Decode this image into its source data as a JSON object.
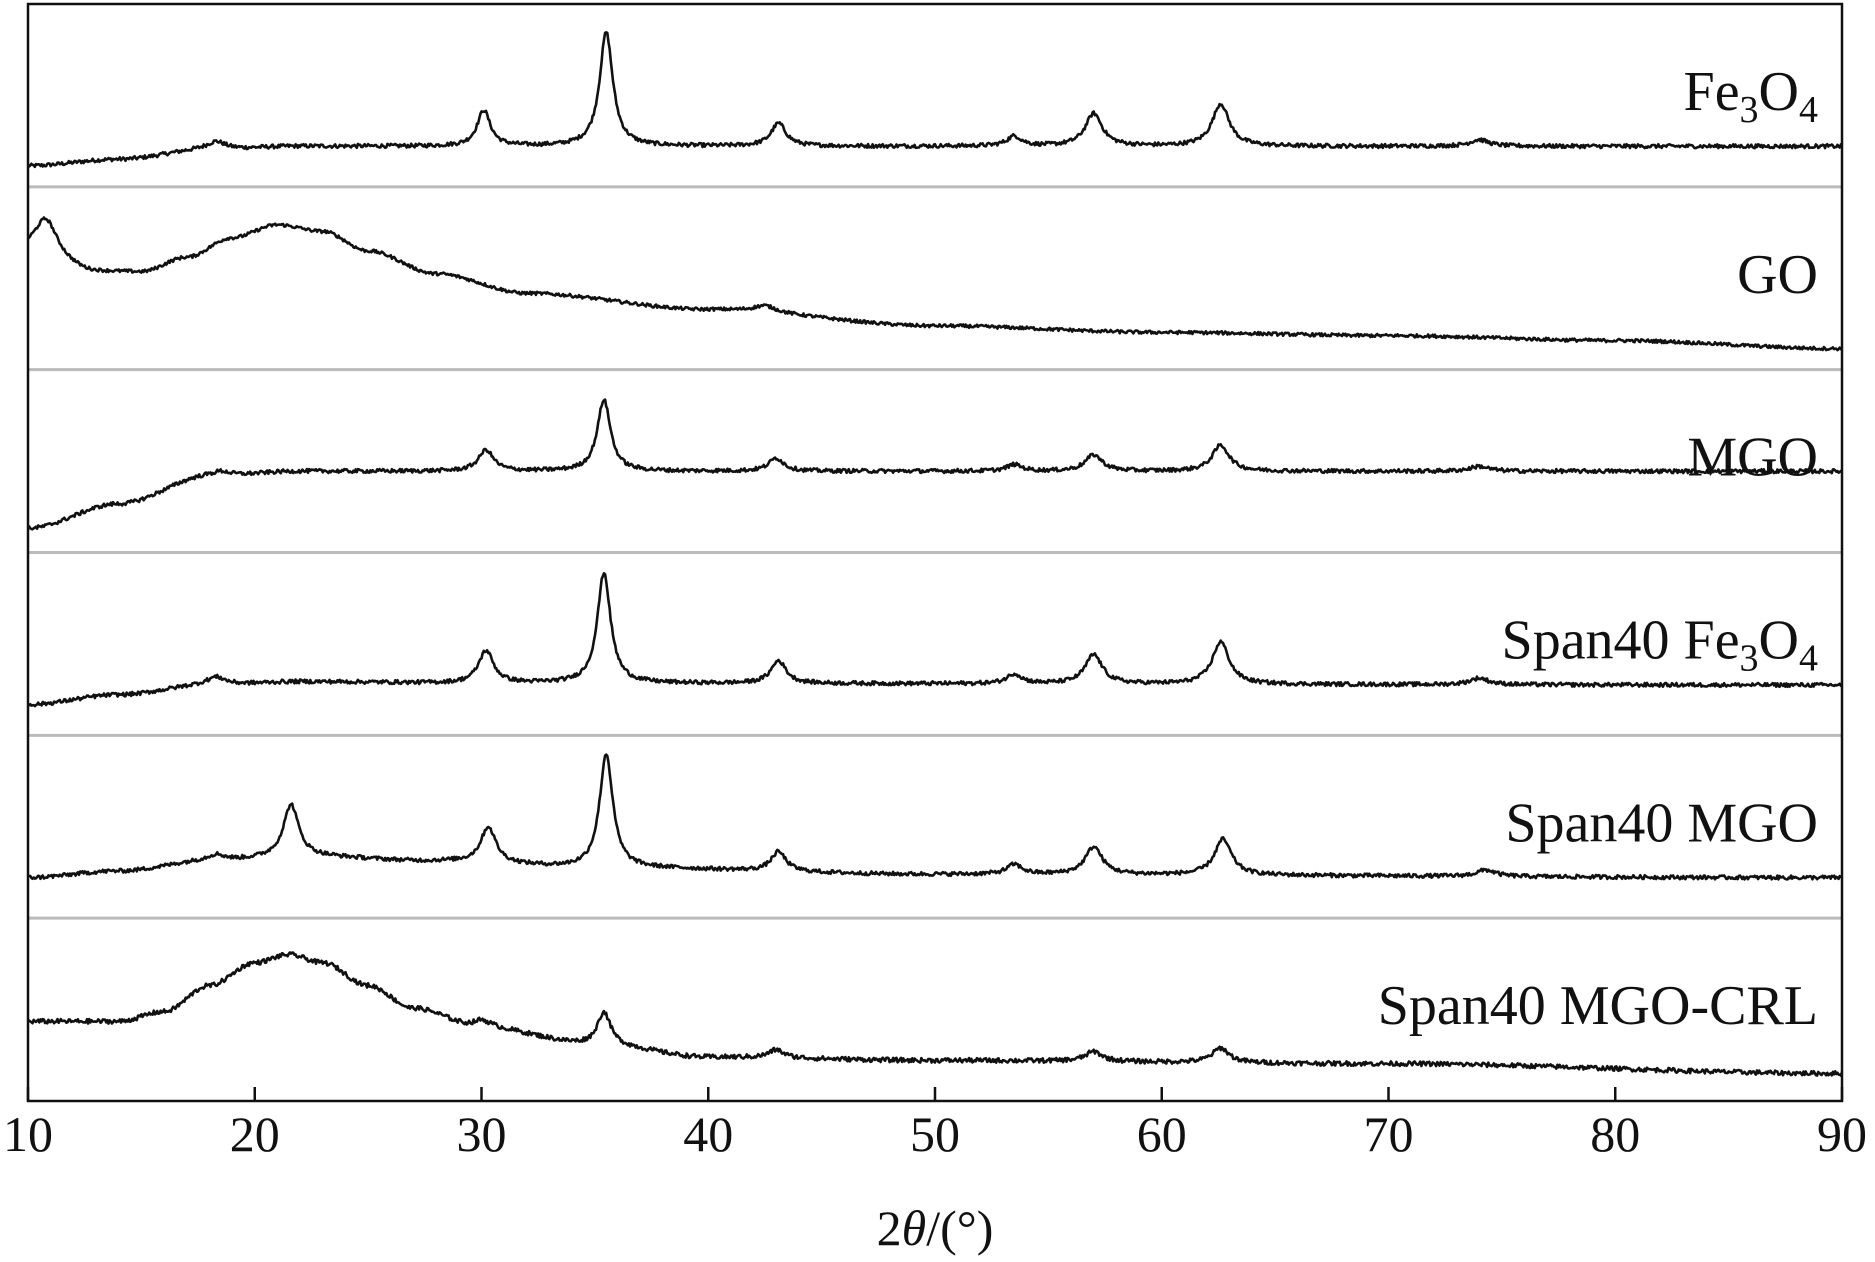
{
  "chart_data": {
    "type": "line",
    "title": "",
    "xlabel_parts": {
      "prefix": "2",
      "symbol": "θ",
      "suffix": "/(°)"
    },
    "ylabel": "",
    "xlim": [
      10,
      90
    ],
    "x_ticks": [
      10,
      20,
      30,
      40,
      50,
      60,
      70,
      80,
      90
    ],
    "y_ticks_shown": false,
    "grid": false,
    "legend": "inline labels at right of each trace",
    "separators": true,
    "colors": {
      "trace": "#111111",
      "separator": "#bbbbbb",
      "frame": "#111111"
    },
    "series": [
      {
        "name": "Fe3O4",
        "label_parts": [
          {
            "t": "Fe"
          },
          {
            "t": "3",
            "sub": true
          },
          {
            "t": "O"
          },
          {
            "t": "4",
            "sub": true
          }
        ],
        "baseline": [
          [
            10,
            0.08
          ],
          [
            14,
            0.12
          ],
          [
            18,
            0.18
          ],
          [
            22,
            0.2
          ],
          [
            26,
            0.2
          ],
          [
            35,
            0.2
          ],
          [
            90,
            0.2
          ]
        ],
        "peaks": [
          {
            "x": 18.3,
            "h": 0.05,
            "w": 0.5
          },
          {
            "x": 30.1,
            "h": 0.22,
            "w": 0.35
          },
          {
            "x": 35.5,
            "h": 0.7,
            "w": 0.35
          },
          {
            "x": 43.1,
            "h": 0.14,
            "w": 0.4
          },
          {
            "x": 53.5,
            "h": 0.06,
            "w": 0.4
          },
          {
            "x": 57.0,
            "h": 0.2,
            "w": 0.45
          },
          {
            "x": 62.6,
            "h": 0.26,
            "w": 0.45
          },
          {
            "x": 74.0,
            "h": 0.04,
            "w": 0.5
          }
        ],
        "noise": 0.012
      },
      {
        "name": "GO",
        "label_parts": [
          {
            "t": "GO"
          }
        ],
        "baseline": [
          [
            10,
            0.68
          ],
          [
            13,
            0.55
          ],
          [
            15,
            0.55
          ],
          [
            17,
            0.64
          ],
          [
            19,
            0.76
          ],
          [
            21,
            0.84
          ],
          [
            23,
            0.8
          ],
          [
            25,
            0.68
          ],
          [
            28,
            0.54
          ],
          [
            32,
            0.42
          ],
          [
            40,
            0.32
          ],
          [
            50,
            0.22
          ],
          [
            60,
            0.18
          ],
          [
            70,
            0.16
          ],
          [
            80,
            0.13
          ],
          [
            90,
            0.08
          ]
        ],
        "peaks": [
          {
            "x": 10.8,
            "h": 0.22,
            "w": 0.6
          },
          {
            "x": 42.5,
            "h": 0.04,
            "w": 0.6
          }
        ],
        "noise": 0.01
      },
      {
        "name": "MGO",
        "label_parts": [
          {
            "t": "MGO"
          }
        ],
        "baseline": [
          [
            10,
            0.1
          ],
          [
            14,
            0.25
          ],
          [
            18,
            0.42
          ],
          [
            22,
            0.45
          ],
          [
            30,
            0.45
          ],
          [
            90,
            0.45
          ]
        ],
        "peaks": [
          {
            "x": 18.5,
            "h": 0.03,
            "w": 0.5
          },
          {
            "x": 30.2,
            "h": 0.13,
            "w": 0.4
          },
          {
            "x": 35.4,
            "h": 0.44,
            "w": 0.35
          },
          {
            "x": 43.0,
            "h": 0.08,
            "w": 0.4
          },
          {
            "x": 53.5,
            "h": 0.04,
            "w": 0.4
          },
          {
            "x": 57.0,
            "h": 0.1,
            "w": 0.45
          },
          {
            "x": 62.6,
            "h": 0.16,
            "w": 0.45
          },
          {
            "x": 74.0,
            "h": 0.03,
            "w": 0.5
          }
        ],
        "noise": 0.012
      },
      {
        "name": "Span40 Fe3O4",
        "label_parts": [
          {
            "t": "Span40 Fe"
          },
          {
            "t": "3",
            "sub": true
          },
          {
            "t": "O"
          },
          {
            "t": "4",
            "sub": true
          }
        ],
        "baseline": [
          [
            10,
            0.14
          ],
          [
            14,
            0.2
          ],
          [
            18,
            0.26
          ],
          [
            22,
            0.28
          ],
          [
            30,
            0.27
          ],
          [
            90,
            0.26
          ]
        ],
        "peaks": [
          {
            "x": 18.3,
            "h": 0.05,
            "w": 0.5
          },
          {
            "x": 30.2,
            "h": 0.2,
            "w": 0.4
          },
          {
            "x": 35.4,
            "h": 0.68,
            "w": 0.35
          },
          {
            "x": 43.1,
            "h": 0.14,
            "w": 0.4
          },
          {
            "x": 53.5,
            "h": 0.06,
            "w": 0.4
          },
          {
            "x": 57.0,
            "h": 0.18,
            "w": 0.45
          },
          {
            "x": 62.6,
            "h": 0.26,
            "w": 0.45
          },
          {
            "x": 74.0,
            "h": 0.04,
            "w": 0.5
          }
        ],
        "noise": 0.012
      },
      {
        "name": "Span40 MGO",
        "label_parts": [
          {
            "t": "Span40 MGO"
          }
        ],
        "baseline": [
          [
            10,
            0.2
          ],
          [
            14,
            0.24
          ],
          [
            18,
            0.3
          ],
          [
            22,
            0.33
          ],
          [
            28,
            0.3
          ],
          [
            35,
            0.26
          ],
          [
            50,
            0.22
          ],
          [
            90,
            0.2
          ]
        ],
        "peaks": [
          {
            "x": 18.3,
            "h": 0.04,
            "w": 0.5
          },
          {
            "x": 21.6,
            "h": 0.32,
            "w": 0.4
          },
          {
            "x": 30.3,
            "h": 0.22,
            "w": 0.4
          },
          {
            "x": 35.5,
            "h": 0.7,
            "w": 0.35
          },
          {
            "x": 43.1,
            "h": 0.12,
            "w": 0.4
          },
          {
            "x": 53.5,
            "h": 0.06,
            "w": 0.4
          },
          {
            "x": 57.0,
            "h": 0.17,
            "w": 0.45
          },
          {
            "x": 62.7,
            "h": 0.22,
            "w": 0.45
          },
          {
            "x": 74.3,
            "h": 0.04,
            "w": 0.5
          }
        ],
        "noise": 0.012
      },
      {
        "name": "Span40 MGO-CRL",
        "label_parts": [
          {
            "t": "Span40 MGO-CRL"
          }
        ],
        "baseline": [
          [
            10,
            0.44
          ],
          [
            14,
            0.44
          ],
          [
            16,
            0.5
          ],
          [
            18,
            0.66
          ],
          [
            20,
            0.8
          ],
          [
            21.5,
            0.85
          ],
          [
            23,
            0.8
          ],
          [
            25,
            0.66
          ],
          [
            27,
            0.52
          ],
          [
            30,
            0.4
          ],
          [
            35,
            0.3
          ],
          [
            40,
            0.22
          ],
          [
            50,
            0.2
          ],
          [
            70,
            0.18
          ],
          [
            90,
            0.12
          ]
        ],
        "peaks": [
          {
            "x": 30.0,
            "h": 0.05,
            "w": 0.5
          },
          {
            "x": 35.4,
            "h": 0.2,
            "w": 0.35
          },
          {
            "x": 43.0,
            "h": 0.05,
            "w": 0.4
          },
          {
            "x": 57.0,
            "h": 0.06,
            "w": 0.45
          },
          {
            "x": 62.6,
            "h": 0.09,
            "w": 0.45
          }
        ],
        "noise": 0.014
      }
    ]
  }
}
